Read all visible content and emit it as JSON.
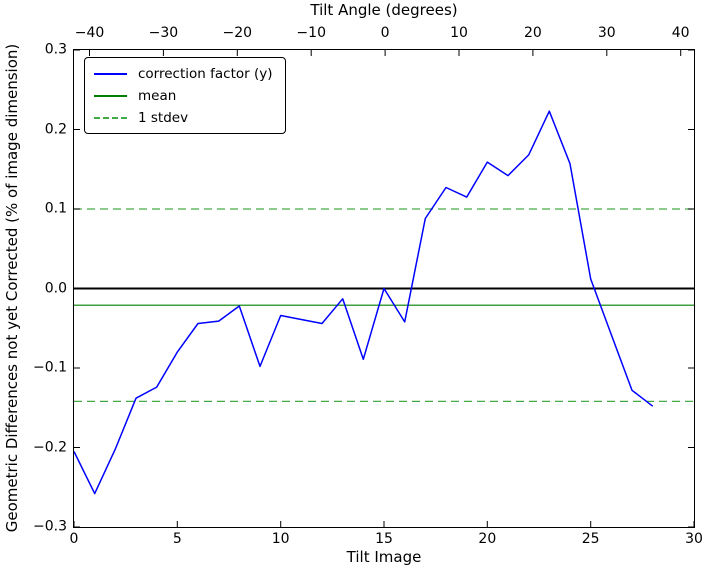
{
  "figure": {
    "background": "#ffffff",
    "top_axis": {
      "title": "Tilt Angle (degrees)",
      "tick_labels": [
        "−40",
        "−30",
        "−20",
        "−10",
        "0",
        "10",
        "20",
        "30",
        "40"
      ]
    },
    "bottom_axis": {
      "title": "Tilt Image",
      "tick_labels": [
        "0",
        "5",
        "10",
        "15",
        "20",
        "25",
        "30"
      ]
    },
    "left_axis": {
      "title": "Geometric Differences not yet Corrected (% of image dimension)",
      "tick_labels": [
        "0.3",
        "0.2",
        "0.1",
        "0.0",
        "−0.1",
        "−0.2",
        "−0.3"
      ]
    }
  },
  "legend": {
    "entries": [
      {
        "label": "correction factor (y)",
        "color": "#0000ff",
        "style": "solid"
      },
      {
        "label": "mean",
        "color": "#008000",
        "style": "solid"
      },
      {
        "label": "1 stdev",
        "color": "#44aa44",
        "style": "dashed"
      }
    ]
  },
  "chart_data": {
    "type": "line",
    "title": "Tilt Angle (degrees)",
    "xlabel": "Tilt Image",
    "x2label": "Tilt Angle (degrees)",
    "ylabel": "Geometric Differences not yet Corrected (% of image dimension)",
    "xlim": [
      0,
      30
    ],
    "x2lim": [
      -42.1,
      41.8
    ],
    "ylim": [
      -0.3,
      0.3
    ],
    "xticks": [
      0,
      5,
      10,
      15,
      20,
      25,
      30
    ],
    "x2ticks": [
      -40,
      -30,
      -20,
      -10,
      0,
      10,
      20,
      30,
      40
    ],
    "yticks": [
      0.3,
      0.2,
      0.1,
      0.0,
      -0.1,
      -0.2,
      -0.3
    ],
    "grid": false,
    "legend_position": "upper left",
    "x": [
      0,
      1,
      2,
      3,
      4,
      5,
      6,
      7,
      8,
      9,
      10,
      11,
      12,
      13,
      14,
      15,
      16,
      17,
      18,
      19,
      20,
      21,
      22,
      23,
      24,
      25,
      26,
      27,
      28
    ],
    "series": [
      {
        "name": "correction factor (y)",
        "color": "#0000ff",
        "values": [
          -0.205,
          -0.258,
          -0.202,
          -0.138,
          -0.124,
          -0.08,
          -0.044,
          -0.041,
          -0.022,
          -0.098,
          -0.034,
          -0.039,
          -0.044,
          -0.013,
          -0.089,
          0.0,
          -0.042,
          0.088,
          0.127,
          0.115,
          0.159,
          0.142,
          0.168,
          0.223,
          0.157,
          0.012,
          -0.058,
          -0.128,
          -0.148
        ]
      }
    ],
    "reference_lines": {
      "zero": {
        "value": 0.0,
        "color": "#000000"
      },
      "mean": {
        "value": -0.021,
        "color": "#008000",
        "label": "mean"
      },
      "stdev_upper": {
        "value": 0.1,
        "color": "#44aa44",
        "label": "1 stdev"
      },
      "stdev_lower": {
        "value": -0.142,
        "color": "#44aa44",
        "label": "1 stdev"
      }
    }
  }
}
